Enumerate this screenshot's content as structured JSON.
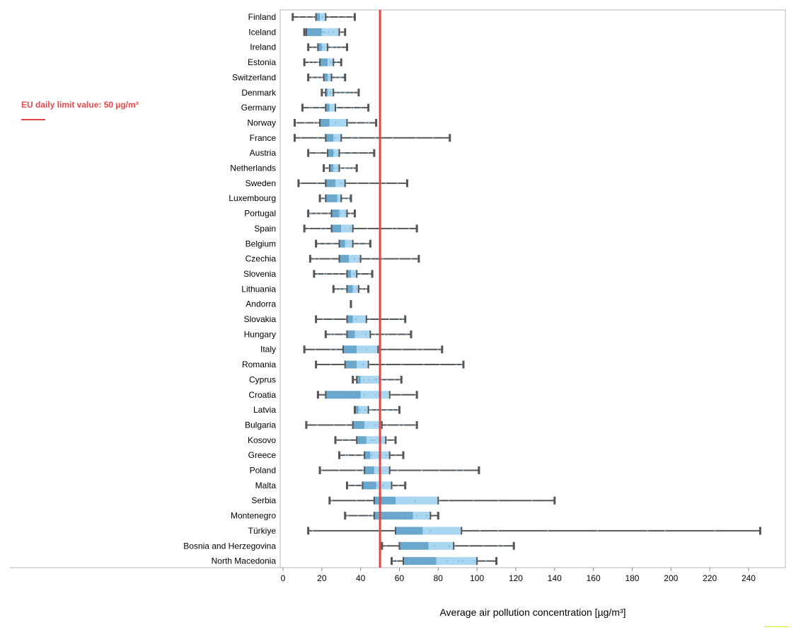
{
  "chart_data": {
    "type": "box",
    "xlabel": "Average air pollution concentration [µg/m³]",
    "xlim": [
      0,
      260
    ],
    "xticks": [
      0,
      20,
      40,
      60,
      80,
      100,
      120,
      140,
      160,
      180,
      200,
      220,
      240
    ],
    "grid": false,
    "reference_line": {
      "value": 50,
      "label": "EU daily limit value: 50 µg/m³",
      "color": "#d9474b"
    },
    "colors": {
      "q1_median": "#6aa7cc",
      "median_q3": "#a9d6f0",
      "whisker": "#555555",
      "points": "#7ab4d8"
    },
    "series": [
      {
        "country": "Finland",
        "min": 5,
        "q1": 17,
        "median": 19,
        "q3": 22,
        "max": 37
      },
      {
        "country": "Iceland",
        "min": 11,
        "q1": 12,
        "median": 20,
        "q3": 29,
        "max": 32
      },
      {
        "country": "Ireland",
        "min": 13,
        "q1": 18,
        "median": 20,
        "q3": 23,
        "max": 33
      },
      {
        "country": "Estonia",
        "min": 11,
        "q1": 19,
        "median": 23,
        "q3": 26,
        "max": 30
      },
      {
        "country": "Switzerland",
        "min": 13,
        "q1": 21,
        "median": 23,
        "q3": 25,
        "max": 32
      },
      {
        "country": "Denmark",
        "min": 20,
        "q1": 22,
        "median": 23,
        "q3": 26,
        "max": 39
      },
      {
        "country": "Germany",
        "min": 10,
        "q1": 22,
        "median": 24,
        "q3": 27,
        "max": 44
      },
      {
        "country": "Norway",
        "min": 6,
        "q1": 19,
        "median": 24,
        "q3": 33,
        "max": 48
      },
      {
        "country": "France",
        "min": 6,
        "q1": 22,
        "median": 26,
        "q3": 30,
        "max": 86
      },
      {
        "country": "Austria",
        "min": 13,
        "q1": 23,
        "median": 26,
        "q3": 29,
        "max": 47
      },
      {
        "country": "Netherlands",
        "min": 21,
        "q1": 24,
        "median": 26,
        "q3": 29,
        "max": 38
      },
      {
        "country": "Sweden",
        "min": 8,
        "q1": 22,
        "median": 27,
        "q3": 32,
        "max": 64
      },
      {
        "country": "Luxembourg",
        "min": 19,
        "q1": 22,
        "median": 28,
        "q3": 30,
        "max": 35
      },
      {
        "country": "Portugal",
        "min": 13,
        "q1": 25,
        "median": 29,
        "q3": 33,
        "max": 37
      },
      {
        "country": "Spain",
        "min": 11,
        "q1": 25,
        "median": 30,
        "q3": 36,
        "max": 69
      },
      {
        "country": "Belgium",
        "min": 17,
        "q1": 29,
        "median": 32,
        "q3": 36,
        "max": 45
      },
      {
        "country": "Czechia",
        "min": 14,
        "q1": 29,
        "median": 34,
        "q3": 40,
        "max": 70
      },
      {
        "country": "Slovenia",
        "min": 16,
        "q1": 33,
        "median": 35,
        "q3": 38,
        "max": 46
      },
      {
        "country": "Lithuania",
        "min": 26,
        "q1": 33,
        "median": 36,
        "q3": 39,
        "max": 44
      },
      {
        "country": "Andorra",
        "min": 35,
        "q1": 35,
        "median": 35,
        "q3": 35,
        "max": 35
      },
      {
        "country": "Slovakia",
        "min": 17,
        "q1": 33,
        "median": 36,
        "q3": 43,
        "max": 63
      },
      {
        "country": "Hungary",
        "min": 22,
        "q1": 33,
        "median": 37,
        "q3": 45,
        "max": 66
      },
      {
        "country": "Italy",
        "min": 11,
        "q1": 31,
        "median": 38,
        "q3": 49,
        "max": 82
      },
      {
        "country": "Romania",
        "min": 17,
        "q1": 32,
        "median": 38,
        "q3": 44,
        "max": 93
      },
      {
        "country": "Cyprus",
        "min": 36,
        "q1": 38,
        "median": 40,
        "q3": 50,
        "max": 61
      },
      {
        "country": "Croatia",
        "min": 18,
        "q1": 22,
        "median": 40,
        "q3": 55,
        "max": 69
      },
      {
        "country": "Latvia",
        "min": 37,
        "q1": 37,
        "median": 39,
        "q3": 44,
        "max": 60
      },
      {
        "country": "Bulgaria",
        "min": 12,
        "q1": 36,
        "median": 42,
        "q3": 51,
        "max": 69
      },
      {
        "country": "Kosovo",
        "min": 27,
        "q1": 38,
        "median": 43,
        "q3": 53,
        "max": 58
      },
      {
        "country": "Greece",
        "min": 29,
        "q1": 42,
        "median": 45,
        "q3": 55,
        "max": 62
      },
      {
        "country": "Poland",
        "min": 19,
        "q1": 42,
        "median": 47,
        "q3": 55,
        "max": 101
      },
      {
        "country": "Malta",
        "min": 33,
        "q1": 41,
        "median": 48,
        "q3": 56,
        "max": 63
      },
      {
        "country": "Serbia",
        "min": 24,
        "q1": 47,
        "median": 58,
        "q3": 80,
        "max": 140
      },
      {
        "country": "Montenegro",
        "min": 32,
        "q1": 47,
        "median": 67,
        "q3": 76,
        "max": 80
      },
      {
        "country": "Türkiye",
        "min": 13,
        "q1": 58,
        "median": 72,
        "q3": 92,
        "max": 246
      },
      {
        "country": "Bosnia and Herzegovina",
        "min": 51,
        "q1": 60,
        "median": 75,
        "q3": 88,
        "max": 119
      },
      {
        "country": "North Macedonia",
        "min": 56,
        "q1": 62,
        "median": 79,
        "q3": 100,
        "max": 110
      }
    ]
  }
}
